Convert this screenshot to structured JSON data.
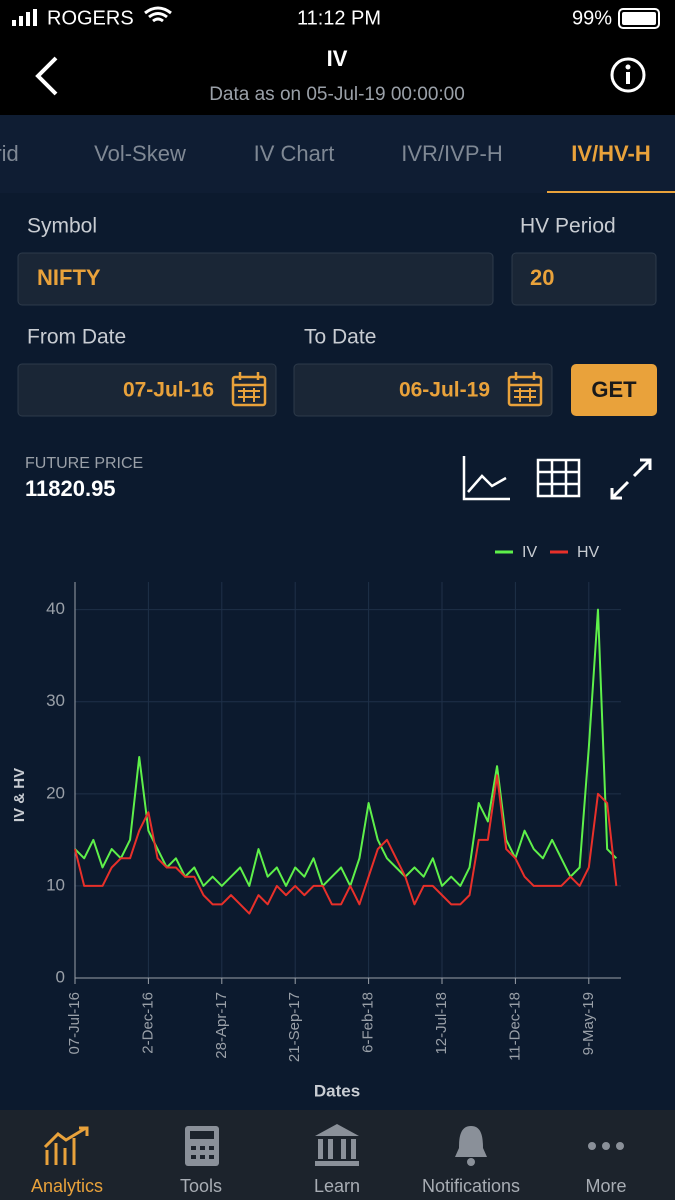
{
  "status_bar": {
    "carrier": "ROGERS",
    "time": "11:12 PM",
    "battery": "99%"
  },
  "header": {
    "title": "IV",
    "subtitle": "Data as on 05-Jul-19 00:00:00"
  },
  "tabs": [
    "Grid",
    "Vol-Skew",
    "IV Chart",
    "IVR/IVP-H",
    "IV/HV-H"
  ],
  "form": {
    "symbol_label": "Symbol",
    "symbol_value": "NIFTY",
    "hv_period_label": "HV Period",
    "hv_period_value": "20",
    "from_date_label": "From Date",
    "from_date": "07-Jul-16",
    "to_date_label": "To Date",
    "to_date": "06-Jul-19",
    "button": "GET"
  },
  "future_price": {
    "label": "FUTURE PRICE",
    "value": "11820.95"
  },
  "chart_data": {
    "type": "line",
    "x_label": "Dates",
    "y_label": "IV & HV",
    "categories": [
      "07-Jul-16",
      null,
      null,
      null,
      null,
      null,
      null,
      null,
      "2-Dec-16",
      null,
      null,
      null,
      null,
      null,
      null,
      null,
      "28-Apr-17",
      null,
      null,
      null,
      null,
      null,
      null,
      null,
      "21-Sep-17",
      null,
      null,
      null,
      null,
      null,
      null,
      null,
      "6-Feb-18",
      null,
      null,
      null,
      null,
      null,
      null,
      null,
      "12-Jul-18",
      null,
      null,
      null,
      null,
      null,
      null,
      null,
      "11-Dec-18",
      null,
      null,
      null,
      null,
      null,
      null,
      null,
      "9-May-19",
      null,
      null,
      null
    ],
    "series": [
      {
        "name": "IV",
        "color": "#5ef04a",
        "values": [
          14,
          13,
          15,
          12,
          14,
          13,
          15,
          24,
          16,
          14,
          12,
          13,
          11,
          12,
          10,
          11,
          10,
          11,
          12,
          10,
          14,
          11,
          12,
          10,
          12,
          11,
          13,
          10,
          11,
          12,
          10,
          13,
          19,
          15,
          13,
          12,
          11,
          12,
          11,
          13,
          10,
          11,
          10,
          12,
          19,
          17,
          23,
          15,
          13,
          16,
          14,
          13,
          15,
          13,
          11,
          12,
          25,
          40,
          14,
          13
        ]
      },
      {
        "name": "HV",
        "color": "#e8302a",
        "values": [
          14,
          10,
          10,
          10,
          12,
          13,
          13,
          16,
          18,
          13,
          12,
          12,
          11,
          11,
          9,
          8,
          8,
          9,
          8,
          7,
          9,
          8,
          10,
          9,
          10,
          9,
          10,
          10,
          8,
          8,
          10,
          8,
          11,
          14,
          15,
          13,
          11,
          8,
          10,
          10,
          9,
          8,
          8,
          9,
          15,
          15,
          22,
          14,
          13,
          11,
          10,
          10,
          10,
          10,
          11,
          10,
          12,
          20,
          19,
          10
        ]
      }
    ],
    "ylim": [
      0,
      43
    ],
    "yticks": [
      0,
      10,
      20,
      30,
      40
    ],
    "grid": true,
    "legend": "top-right"
  },
  "nav": [
    "Analytics",
    "Tools",
    "Learn",
    "Notifications",
    "More"
  ]
}
